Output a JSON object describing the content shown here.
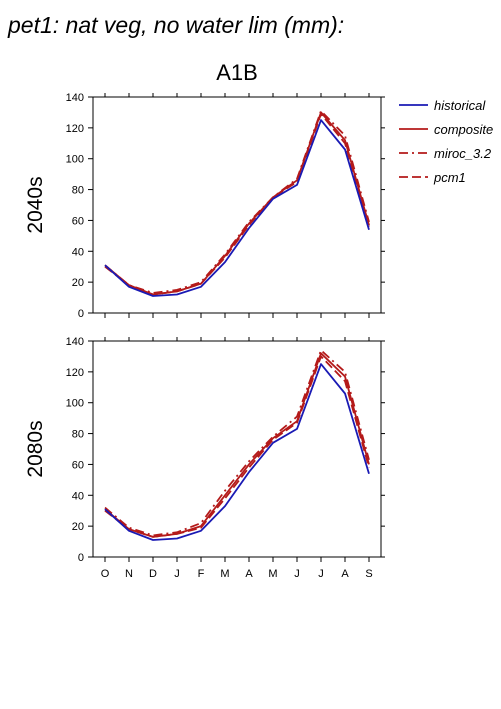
{
  "figure": {
    "title": "pet1: nat veg, no water lim (mm):",
    "scenario": "A1B"
  },
  "legend": [
    {
      "label": "historical",
      "color": "#1a1ab4",
      "dash": "solid"
    },
    {
      "label": "composite",
      "color": "#b41a1a",
      "dash": "solid"
    },
    {
      "label": "miroc_3.2",
      "color": "#b41a1a",
      "dash": "dashdot"
    },
    {
      "label": "pcm1",
      "color": "#b41a1a",
      "dash": "dashed"
    }
  ],
  "chart_data": [
    {
      "type": "line",
      "panel_label": "2040s",
      "categories": [
        "O",
        "N",
        "D",
        "J",
        "F",
        "M",
        "A",
        "M",
        "J",
        "J",
        "A",
        "S"
      ],
      "ylim": [
        0,
        140
      ],
      "yticks": [
        0,
        20,
        40,
        60,
        80,
        100,
        120,
        140
      ],
      "series": [
        {
          "name": "historical",
          "values": [
            31,
            17,
            11,
            12,
            17,
            33,
            55,
            74,
            83,
            125,
            106,
            54
          ]
        },
        {
          "name": "composite",
          "values": [
            31,
            18,
            12,
            14,
            19,
            37,
            58,
            75,
            86,
            130,
            112,
            57
          ]
        },
        {
          "name": "miroc_3.2",
          "values": [
            31,
            18,
            13,
            15,
            20,
            38,
            59,
            75,
            87,
            131,
            115,
            59
          ]
        },
        {
          "name": "pcm1",
          "values": [
            30,
            18,
            12,
            14,
            19,
            36,
            57,
            75,
            85,
            129,
            110,
            56
          ]
        }
      ]
    },
    {
      "type": "line",
      "panel_label": "2080s",
      "categories": [
        "O",
        "N",
        "D",
        "J",
        "F",
        "M",
        "A",
        "M",
        "J",
        "J",
        "A",
        "S"
      ],
      "ylim": [
        0,
        140
      ],
      "yticks": [
        0,
        20,
        40,
        60,
        80,
        100,
        120,
        140
      ],
      "series": [
        {
          "name": "historical",
          "values": [
            31,
            17,
            11,
            12,
            17,
            33,
            55,
            74,
            83,
            125,
            106,
            54
          ]
        },
        {
          "name": "composite",
          "values": [
            31,
            18,
            13,
            15,
            20,
            40,
            60,
            77,
            88,
            132,
            117,
            60
          ]
        },
        {
          "name": "miroc_3.2",
          "values": [
            32,
            19,
            14,
            16,
            22,
            43,
            62,
            78,
            91,
            134,
            120,
            63
          ]
        },
        {
          "name": "pcm1",
          "values": [
            30,
            18,
            13,
            15,
            19,
            38,
            58,
            76,
            87,
            130,
            114,
            58
          ]
        }
      ]
    }
  ]
}
